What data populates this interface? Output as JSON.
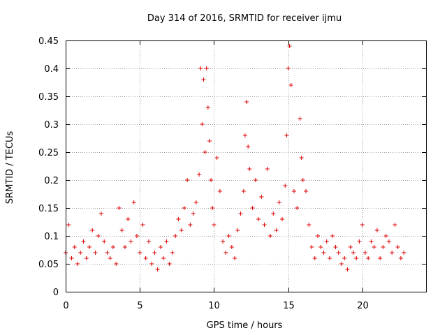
{
  "chart_data": {
    "type": "scatter",
    "title": "Day 314 of 2016, SRMTID for receiver ijmu",
    "xlabel": "GPS time / hours",
    "ylabel": "SRMTID / TECUs",
    "xlim": [
      0,
      24.3
    ],
    "ylim": [
      0,
      0.45
    ],
    "xticks": [
      0,
      5,
      10,
      15,
      20
    ],
    "xtick_labels": [
      "0",
      "5",
      "10",
      "15",
      "20"
    ],
    "yticks": [
      0,
      0.05,
      0.1,
      0.15,
      0.2,
      0.25,
      0.3,
      0.35,
      0.4,
      0.45
    ],
    "ytick_labels": [
      "0",
      "0.05",
      "0.1",
      "0.15",
      "0.2",
      "0.25",
      "0.3",
      "0.35",
      "0.4",
      "0.45"
    ],
    "grid": true,
    "marker": "plus",
    "color": "#e00000",
    "series": [
      {
        "name": "SRMTID",
        "x": [
          0.0,
          0.2,
          0.4,
          0.6,
          0.8,
          1.0,
          1.2,
          1.4,
          1.6,
          1.8,
          2.0,
          2.2,
          2.4,
          2.6,
          2.8,
          3.0,
          3.2,
          3.4,
          3.6,
          3.8,
          4.0,
          4.2,
          4.4,
          4.6,
          4.8,
          5.0,
          5.2,
          5.4,
          5.6,
          5.8,
          6.0,
          6.2,
          6.4,
          6.6,
          6.8,
          7.0,
          7.2,
          7.4,
          7.6,
          7.8,
          8.0,
          8.2,
          8.4,
          8.6,
          8.8,
          9.0,
          9.1,
          9.2,
          9.3,
          9.4,
          9.5,
          9.6,
          9.7,
          9.8,
          9.9,
          10.0,
          10.2,
          10.4,
          10.6,
          10.8,
          11.0,
          11.2,
          11.4,
          11.6,
          11.8,
          12.0,
          12.1,
          12.2,
          12.3,
          12.4,
          12.6,
          12.8,
          13.0,
          13.2,
          13.4,
          13.6,
          13.8,
          14.0,
          14.2,
          14.4,
          14.6,
          14.8,
          14.9,
          15.0,
          15.1,
          15.2,
          15.4,
          15.6,
          15.8,
          15.9,
          16.0,
          16.2,
          16.4,
          16.6,
          16.8,
          17.0,
          17.2,
          17.4,
          17.6,
          17.8,
          18.0,
          18.2,
          18.4,
          18.6,
          18.8,
          19.0,
          19.2,
          19.4,
          19.6,
          19.8,
          20.0,
          20.2,
          20.4,
          20.6,
          20.8,
          21.0,
          21.2,
          21.4,
          21.6,
          21.8,
          22.0,
          22.2,
          22.4,
          22.6,
          22.8
        ],
        "y": [
          0.07,
          0.12,
          0.06,
          0.08,
          0.05,
          0.07,
          0.09,
          0.06,
          0.08,
          0.11,
          0.07,
          0.1,
          0.14,
          0.09,
          0.07,
          0.06,
          0.08,
          0.05,
          0.15,
          0.11,
          0.08,
          0.13,
          0.09,
          0.16,
          0.1,
          0.07,
          0.12,
          0.06,
          0.09,
          0.05,
          0.07,
          0.04,
          0.08,
          0.06,
          0.09,
          0.05,
          0.07,
          0.1,
          0.13,
          0.11,
          0.15,
          0.2,
          0.12,
          0.14,
          0.16,
          0.21,
          0.4,
          0.3,
          0.38,
          0.25,
          0.4,
          0.33,
          0.27,
          0.2,
          0.15,
          0.12,
          0.24,
          0.18,
          0.09,
          0.07,
          0.1,
          0.08,
          0.06,
          0.11,
          0.14,
          0.18,
          0.28,
          0.34,
          0.26,
          0.22,
          0.15,
          0.2,
          0.13,
          0.17,
          0.12,
          0.22,
          0.1,
          0.14,
          0.11,
          0.16,
          0.13,
          0.19,
          0.28,
          0.4,
          0.44,
          0.37,
          0.18,
          0.15,
          0.31,
          0.24,
          0.2,
          0.18,
          0.12,
          0.08,
          0.06,
          0.1,
          0.08,
          0.07,
          0.09,
          0.06,
          0.1,
          0.08,
          0.07,
          0.05,
          0.06,
          0.04,
          0.08,
          0.07,
          0.06,
          0.09,
          0.12,
          0.07,
          0.06,
          0.09,
          0.08,
          0.11,
          0.06,
          0.08,
          0.1,
          0.09,
          0.07,
          0.12,
          0.08,
          0.06,
          0.07
        ]
      }
    ]
  }
}
